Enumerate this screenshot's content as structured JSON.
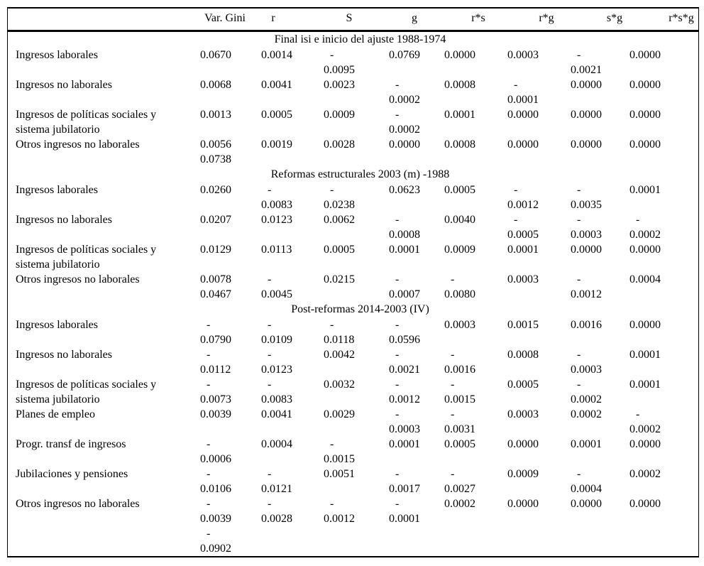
{
  "colors": {
    "background": "#ffffff",
    "text": "#000000",
    "rules": "#000000"
  },
  "table": {
    "corner_label": "",
    "column_headers": [
      "Var. Gini",
      "r",
      "S",
      "g",
      "r*s",
      "r*g",
      "s*g",
      "r*s*g"
    ],
    "sections": [
      {
        "title": "Final isi e inicio del ajuste 1988-1974",
        "rows": [
          {
            "label": [
              "Ingresos laborales"
            ],
            "cells": [
              [
                "0.0670"
              ],
              [
                "0.0014"
              ],
              [
                "-",
                "0.0095"
              ],
              [
                "0.0769"
              ],
              [
                "0.0000"
              ],
              [
                "0.0003"
              ],
              [
                "-",
                "0.0021"
              ],
              [
                "0.0000"
              ]
            ]
          },
          {
            "label": [
              "Ingresos no laborales"
            ],
            "cells": [
              [
                "0.0068"
              ],
              [
                "0.0041"
              ],
              [
                "0.0023"
              ],
              [
                "-",
                "0.0002"
              ],
              [
                "0.0008"
              ],
              [
                "-",
                "0.0001"
              ],
              [
                "0.0000"
              ],
              [
                "0.0000"
              ]
            ]
          },
          {
            "label": [
              "Ingresos de políticas sociales y",
              "sistema jubilatorio"
            ],
            "cells": [
              [
                "0.0013"
              ],
              [
                "0.0005"
              ],
              [
                "0.0009"
              ],
              [
                "-",
                "0.0002"
              ],
              [
                "0.0001"
              ],
              [
                "0.0000"
              ],
              [
                "0.0000"
              ],
              [
                "0.0000"
              ]
            ]
          },
          {
            "label": [
              "Otros ingresos no laborales"
            ],
            "cells": [
              [
                "0.0056",
                "0.0738"
              ],
              [
                "0.0019"
              ],
              [
                "0.0028"
              ],
              [
                "0.0000"
              ],
              [
                "0.0008"
              ],
              [
                "0.0000"
              ],
              [
                "0.0000"
              ],
              [
                "0.0000"
              ]
            ]
          }
        ]
      },
      {
        "title": "Reformas estructurales 2003 (m) -1988",
        "rows": [
          {
            "label": [
              "Ingresos laborales"
            ],
            "cells": [
              [
                "0.0260"
              ],
              [
                "-",
                "0.0083"
              ],
              [
                "-",
                "0.0238"
              ],
              [
                "0.0623"
              ],
              [
                "0.0005"
              ],
              [
                "-",
                "0.0012"
              ],
              [
                "-",
                "0.0035"
              ],
              [
                "0.0001"
              ]
            ]
          },
          {
            "label": [
              "Ingresos no laborales"
            ],
            "cells": [
              [
                "0.0207"
              ],
              [
                "0.0123"
              ],
              [
                "0.0062"
              ],
              [
                "-",
                "0.0008"
              ],
              [
                "0.0040"
              ],
              [
                "-",
                "0.0005"
              ],
              [
                "-",
                "0.0003"
              ],
              [
                "-",
                "0.0002"
              ]
            ]
          },
          {
            "label": [
              "Ingresos de políticas sociales y",
              "sistema jubilatorio"
            ],
            "cells": [
              [
                "0.0129"
              ],
              [
                "0.0113"
              ],
              [
                "0.0005"
              ],
              [
                "0.0001"
              ],
              [
                "0.0009"
              ],
              [
                "0.0001"
              ],
              [
                "0.0000"
              ],
              [
                "0.0000"
              ]
            ]
          },
          {
            "label": [
              "Otros ingresos no laborales"
            ],
            "cells": [
              [
                "0.0078",
                "0.0467"
              ],
              [
                "-",
                "0.0045"
              ],
              [
                "0.0215"
              ],
              [
                "-",
                "0.0007"
              ],
              [
                "-",
                "0.0080"
              ],
              [
                "0.0003"
              ],
              [
                "-",
                "0.0012"
              ],
              [
                "0.0004"
              ]
            ]
          }
        ]
      },
      {
        "title": "Post-reformas 2014-2003 (IV)",
        "rows": [
          {
            "label": [
              "Ingresos laborales"
            ],
            "cells": [
              [
                "-",
                "0.0790"
              ],
              [
                "-",
                "0.0109"
              ],
              [
                "-",
                "0.0118"
              ],
              [
                "-",
                "0.0596"
              ],
              [
                "0.0003"
              ],
              [
                "0.0015"
              ],
              [
                "0.0016"
              ],
              [
                "0.0000"
              ]
            ]
          },
          {
            "label": [
              "Ingresos no laborales"
            ],
            "cells": [
              [
                "-",
                "0.0112"
              ],
              [
                "-",
                "0.0123"
              ],
              [
                "0.0042"
              ],
              [
                "-",
                "0.0021"
              ],
              [
                "-",
                "0.0016"
              ],
              [
                "0.0008"
              ],
              [
                "-",
                "0.0003"
              ],
              [
                "0.0001"
              ]
            ]
          },
          {
            "label": [
              "Ingresos de políticas sociales y",
              "sistema jubilatorio"
            ],
            "cells": [
              [
                "-",
                "0.0073"
              ],
              [
                "-",
                "0.0083"
              ],
              [
                "0.0032"
              ],
              [
                "-",
                "0.0012"
              ],
              [
                "-",
                "0.0015"
              ],
              [
                "0.0005"
              ],
              [
                "-",
                "0.0002"
              ],
              [
                "0.0001"
              ]
            ]
          },
          {
            "label": [
              "Planes de empleo"
            ],
            "cells": [
              [
                "0.0039"
              ],
              [
                "0.0041"
              ],
              [
                "0.0029"
              ],
              [
                "-",
                "0.0003"
              ],
              [
                "-",
                "0.0031"
              ],
              [
                "0.0003"
              ],
              [
                "0.0002"
              ],
              [
                "-",
                "0.0002"
              ]
            ]
          },
          {
            "label": [
              "Progr. transf de ingresos"
            ],
            "cells": [
              [
                "-",
                "0.0006"
              ],
              [
                "0.0004"
              ],
              [
                "-",
                "0.0015"
              ],
              [
                "0.0001"
              ],
              [
                "0.0005"
              ],
              [
                "0.0000"
              ],
              [
                "0.0001"
              ],
              [
                "0.0000"
              ]
            ]
          },
          {
            "label": [
              "Jubilaciones y pensiones"
            ],
            "cells": [
              [
                "-",
                "0.0106"
              ],
              [
                "-",
                "0.0121"
              ],
              [
                "0.0051"
              ],
              [
                "-",
                "0.0017"
              ],
              [
                "-",
                "0.0027"
              ],
              [
                "0.0009"
              ],
              [
                "-",
                "0.0004"
              ],
              [
                "0.0002"
              ]
            ]
          },
          {
            "label": [
              "Otros ingresos no laborales"
            ],
            "cells": [
              [
                "-",
                "0.0039",
                "-",
                "0.0902"
              ],
              [
                "-",
                "0.0028"
              ],
              [
                "-",
                "0.0012"
              ],
              [
                "-",
                "0.0001"
              ],
              [
                "0.0002"
              ],
              [
                "0.0000"
              ],
              [
                "0.0000"
              ],
              [
                "0.0000"
              ]
            ]
          }
        ]
      }
    ]
  },
  "chart_data": {
    "type": "table",
    "title": "",
    "columns": [
      "",
      "Var. Gini",
      "r",
      "S",
      "g",
      "r*s",
      "r*g",
      "s*g",
      "r*s*g"
    ],
    "groups": [
      {
        "group": "Final isi e inicio del ajuste 1988-1974",
        "rows": [
          [
            "Ingresos laborales",
            0.067,
            0.0014,
            -0.0095,
            0.0769,
            0.0,
            0.0003,
            -0.0021,
            0.0
          ],
          [
            "Ingresos no laborales",
            0.0068,
            0.0041,
            0.0023,
            -0.0002,
            0.0008,
            -0.0001,
            0.0,
            0.0
          ],
          [
            "Ingresos de políticas sociales y sistema jubilatorio",
            0.0013,
            0.0005,
            0.0009,
            -0.0002,
            0.0001,
            0.0,
            0.0,
            0.0
          ],
          [
            "Otros ingresos no laborales (0.0056 / 0.0738)",
            0.0056,
            0.0019,
            0.0028,
            0.0,
            0.0008,
            0.0,
            0.0,
            0.0
          ]
        ]
      },
      {
        "group": "Reformas estructurales 2003 (m) -1988",
        "rows": [
          [
            "Ingresos laborales",
            0.026,
            -0.0083,
            -0.0238,
            0.0623,
            0.0005,
            -0.0012,
            -0.0035,
            0.0001
          ],
          [
            "Ingresos no laborales",
            0.0207,
            0.0123,
            0.0062,
            -0.0008,
            0.004,
            -0.0005,
            -0.0003,
            -0.0002
          ],
          [
            "Ingresos de políticas sociales y sistema jubilatorio",
            0.0129,
            0.0113,
            0.0005,
            0.0001,
            0.0009,
            0.0001,
            0.0,
            0.0
          ],
          [
            "Otros ingresos no laborales (0.0078 / 0.0467)",
            0.0078,
            -0.0045,
            0.0215,
            -0.0007,
            -0.008,
            0.0003,
            -0.0012,
            0.0004
          ]
        ]
      },
      {
        "group": "Post-reformas 2014-2003 (IV)",
        "rows": [
          [
            "Ingresos laborales",
            -0.079,
            -0.0109,
            -0.0118,
            -0.0596,
            0.0003,
            0.0015,
            0.0016,
            0.0
          ],
          [
            "Ingresos no laborales",
            -0.0112,
            -0.0123,
            0.0042,
            -0.0021,
            -0.0016,
            0.0008,
            -0.0003,
            0.0001
          ],
          [
            "Ingresos de políticas sociales y sistema jubilatorio",
            -0.0073,
            -0.0083,
            0.0032,
            -0.0012,
            -0.0015,
            0.0005,
            -0.0002,
            0.0001
          ],
          [
            "Planes de empleo",
            0.0039,
            0.0041,
            0.0029,
            -0.0003,
            -0.0031,
            0.0003,
            0.0002,
            -0.0002
          ],
          [
            "Progr. transf de ingresos",
            -0.0006,
            0.0004,
            -0.0015,
            0.0001,
            0.0005,
            0.0,
            0.0001,
            0.0
          ],
          [
            "Jubilaciones y pensiones",
            -0.0106,
            -0.0121,
            0.0051,
            -0.0017,
            -0.0027,
            0.0009,
            -0.0004,
            0.0002
          ],
          [
            "Otros ingresos no laborales (-0.0039 / -0.0902)",
            -0.0039,
            -0.0028,
            -0.0012,
            -0.0001,
            0.0002,
            0.0,
            0.0,
            0.0
          ]
        ]
      }
    ]
  }
}
